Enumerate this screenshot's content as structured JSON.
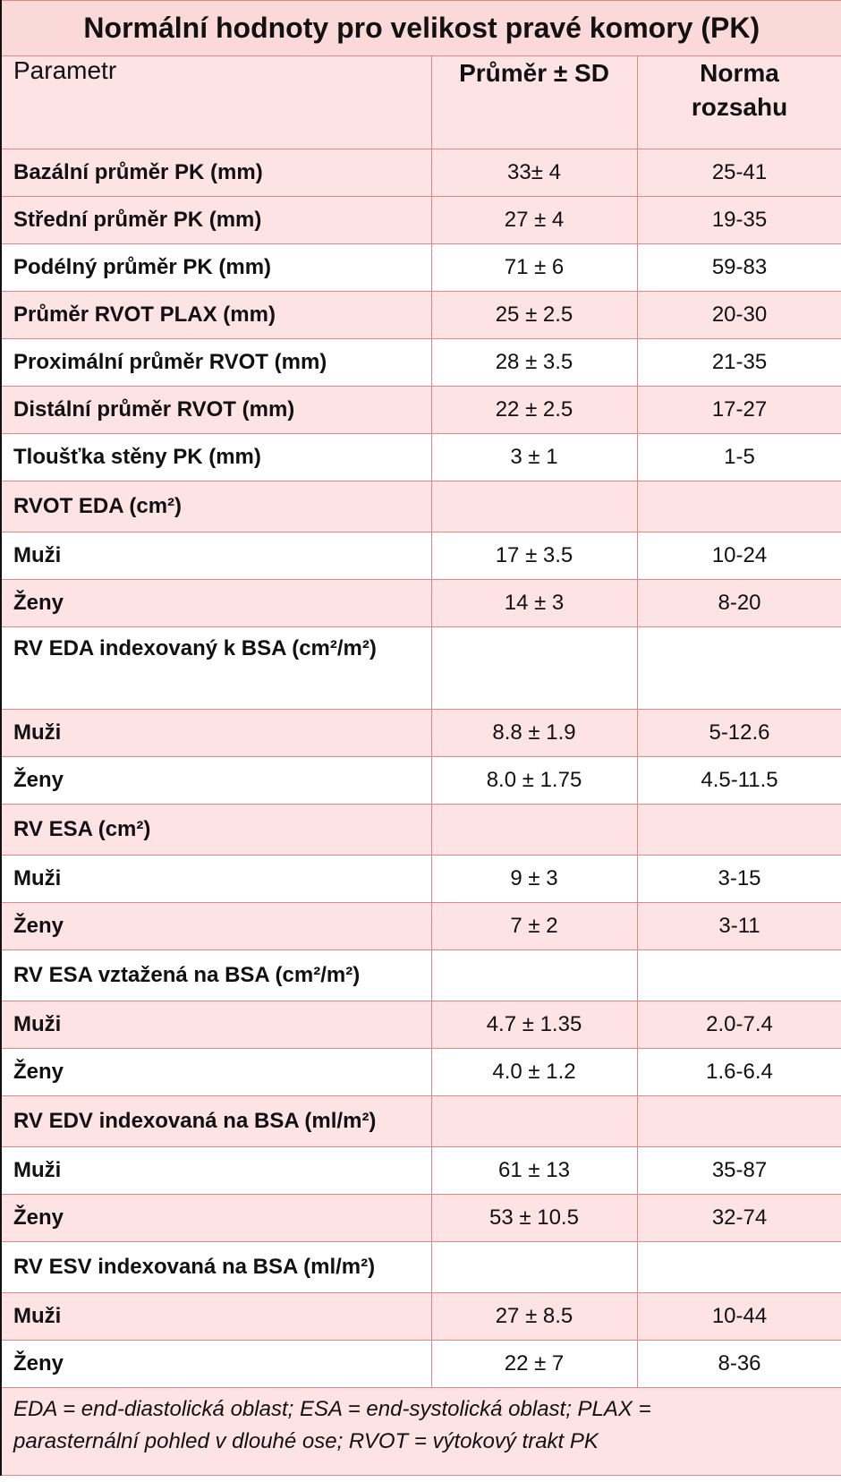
{
  "title": "Normální hodnoty pro velikost pravé komory (PK)",
  "header": {
    "param": "Parametr",
    "mean": "Průměr ± SD",
    "range_line1": "Norma",
    "range_line2": "rozsahu"
  },
  "rows": [
    {
      "param": "Bazální průměr PK (mm)",
      "mean": "33± 4",
      "range": "25-41"
    },
    {
      "param": "Střední průměr PK (mm)",
      "mean": "27 ± 4",
      "range": "19-35"
    },
    {
      "param": "Podélný průměr PK (mm)",
      "mean": "71 ± 6",
      "range": "59-83"
    },
    {
      "param": "Průměr RVOT PLAX (mm)",
      "mean": "25 ± 2.5",
      "range": "20-30"
    },
    {
      "param": "Proximální průměr RVOT (mm)",
      "mean": "28 ± 3.5",
      "range": "21-35"
    },
    {
      "param": "Distální průměr RVOT (mm)",
      "mean": "22 ± 2.5",
      "range": "17-27"
    },
    {
      "param": "Tloušťka stěny PK (mm)",
      "mean": "3 ± 1",
      "range": "1-5"
    },
    {
      "param": "RVOT EDA (cm²)",
      "mean": "",
      "range": ""
    },
    {
      "param": "Muži",
      "mean": "17 ± 3.5",
      "range": "10-24"
    },
    {
      "param": "Ženy",
      "mean": "14 ± 3",
      "range": "8-20"
    },
    {
      "param": "RV EDA indexovaný k BSA (cm²/m²)",
      "mean": "",
      "range": ""
    },
    {
      "param": "Muži",
      "mean": "8.8 ± 1.9",
      "range": "5-12.6"
    },
    {
      "param": "Ženy",
      "mean": "8.0 ± 1.75",
      "range": "4.5-11.5"
    },
    {
      "param": "RV ESA (cm²)",
      "mean": "",
      "range": ""
    },
    {
      "param": "Muži",
      "mean": "9 ± 3",
      "range": "3-15"
    },
    {
      "param": "Ženy",
      "mean": "7 ± 2",
      "range": "3-11"
    },
    {
      "param": "RV ESA vztažená na BSA (cm²/m²)",
      "mean": "",
      "range": ""
    },
    {
      "param": "Muži",
      "mean": "4.7 ± 1.35",
      "range": "2.0-7.4"
    },
    {
      "param": "Ženy",
      "mean": "4.0 ± 1.2",
      "range": "1.6-6.4"
    },
    {
      "param": "RV EDV indexovaná na BSA (ml/m²)",
      "mean": "",
      "range": ""
    },
    {
      "param": "Muži",
      "mean": "61 ± 13",
      "range": "35-87"
    },
    {
      "param": "Ženy",
      "mean": "53 ± 10.5",
      "range": "32-74"
    },
    {
      "param": "RV ESV indexovaná na BSA (ml/m²)",
      "mean": "",
      "range": ""
    },
    {
      "param": "Muži",
      "mean": "27 ± 8.5",
      "range": "10-44"
    },
    {
      "param": "Ženy",
      "mean": "22 ± 7",
      "range": "8-36"
    }
  ],
  "footnote_line1": "EDA = end-diastolická oblast; ESA = end-systolická oblast; PLAX =",
  "footnote_line2": "parasternální pohled v dlouhé ose; RVOT = výtokový trakt PK"
}
